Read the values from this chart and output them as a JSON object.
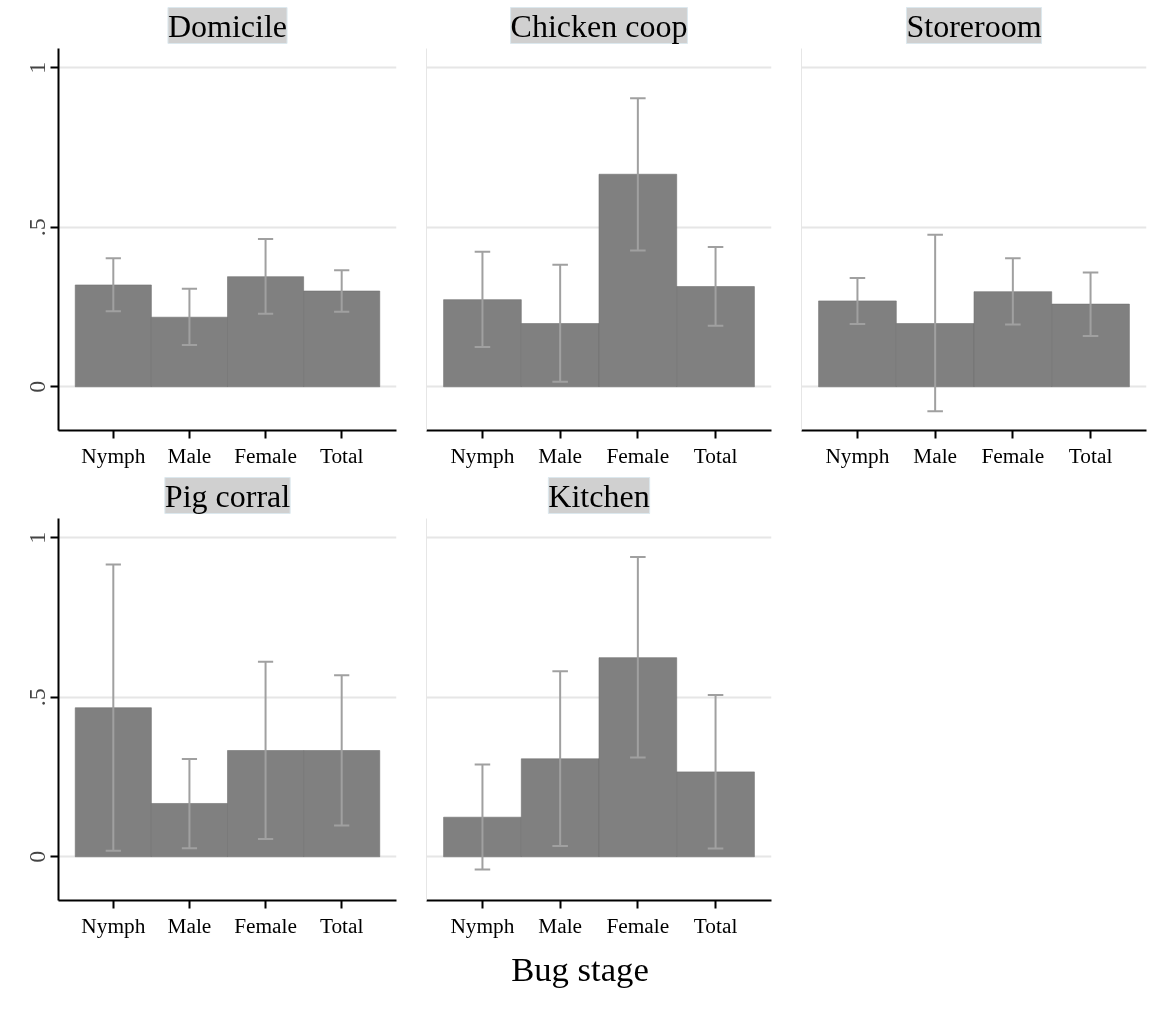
{
  "chart_data": [
    {
      "type": "bar",
      "title": "Domicile",
      "categories": [
        "Nymph",
        "Male",
        "Female",
        "Total"
      ],
      "values": [
        0.319,
        0.218,
        0.345,
        0.3
      ],
      "errors": [
        [
          0.237,
          0.403
        ],
        [
          0.131,
          0.307
        ],
        [
          0.229,
          0.463
        ],
        [
          0.235,
          0.365
        ]
      ],
      "color": "#808080",
      "ylim": [
        -0.137,
        1.06
      ],
      "yticks": [
        {
          "value": 0,
          "label": "0"
        },
        {
          "value": 0.5,
          "label": ".5"
        },
        {
          "value": 1,
          "label": "1"
        }
      ],
      "grid": "y"
    },
    {
      "type": "bar",
      "title": "Chicken coop",
      "categories": [
        "Nymph",
        "Male",
        "Female",
        "Total"
      ],
      "values": [
        0.273,
        0.198,
        0.666,
        0.314
      ],
      "errors": [
        [
          0.125,
          0.423
        ],
        [
          0.016,
          0.382
        ],
        [
          0.427,
          0.904
        ],
        [
          0.191,
          0.438
        ]
      ],
      "color": "#808080",
      "ylim": [
        -0.137,
        1.06
      ],
      "yticks": [
        0,
        0.5,
        1
      ],
      "grid": "y",
      "tick_labels": "x"
    },
    {
      "type": "bar",
      "title": "Storeroom",
      "categories": [
        "Nymph",
        "Male",
        "Female",
        "Total"
      ],
      "values": [
        0.269,
        0.198,
        0.298,
        0.259
      ],
      "errors": [
        [
          0.197,
          0.341
        ],
        [
          -0.077,
          0.476
        ],
        [
          0.195,
          0.403
        ],
        [
          0.159,
          0.358
        ]
      ],
      "color": "#808080",
      "ylim": [
        -0.137,
        1.06
      ],
      "yticks": [
        0,
        0.5,
        1
      ],
      "grid": "y",
      "tick_labels": "x"
    },
    {
      "type": "bar",
      "title": "Pig corral",
      "categories": [
        "Nymph",
        "Male",
        "Female",
        "Total"
      ],
      "values": [
        0.467,
        0.167,
        0.333,
        0.333
      ],
      "errors": [
        [
          0.019,
          0.916
        ],
        [
          0.027,
          0.306
        ],
        [
          0.056,
          0.611
        ],
        [
          0.098,
          0.569
        ]
      ],
      "color": "#808080",
      "ylim": [
        -0.137,
        1.06
      ],
      "yticks": [
        {
          "value": 0,
          "label": "0"
        },
        {
          "value": 0.5,
          "label": ".5"
        },
        {
          "value": 1,
          "label": "1"
        }
      ],
      "grid": "y"
    },
    {
      "type": "bar",
      "title": "Kitchen",
      "categories": [
        "Nymph",
        "Male",
        "Female",
        "Total"
      ],
      "values": [
        0.124,
        0.307,
        0.624,
        0.266
      ],
      "errors": [
        [
          -0.04,
          0.289
        ],
        [
          0.034,
          0.581
        ],
        [
          0.311,
          0.939
        ],
        [
          0.026,
          0.507
        ]
      ],
      "color": "#808080",
      "ylim": [
        -0.137,
        1.06
      ],
      "yticks": [
        0,
        0.5,
        1
      ],
      "grid": "y",
      "tick_labels": "x",
      "xlabel": "Bug stage"
    }
  ]
}
